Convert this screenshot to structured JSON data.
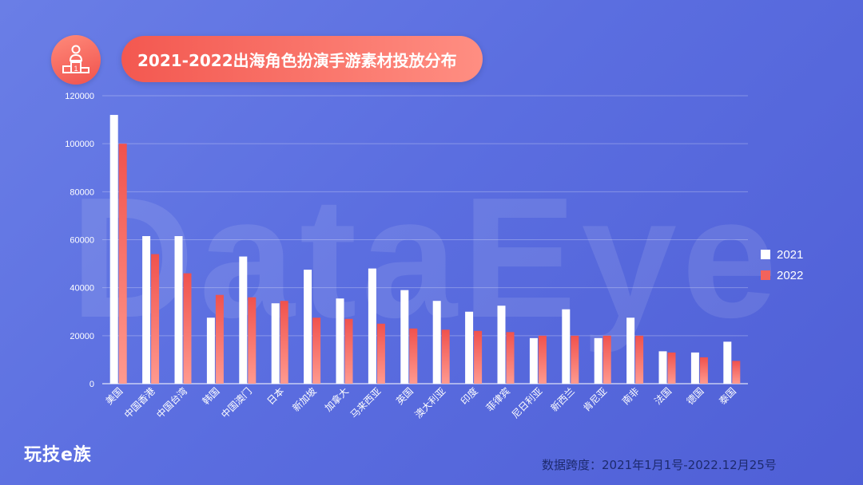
{
  "title": "2021-2022出海角色扮演手游素材投放分布",
  "watermark": "DataEye",
  "brand": "玩技e族",
  "footnote": "数据跨度：2021年1月1号-2022.12月25号",
  "colors": {
    "s2021": "#ffffff",
    "s2022": "#f2635c",
    "axis": "#ffffff",
    "grid": "rgba(255,255,255,0.28)"
  },
  "icons": {
    "logo": "podium-person-icon"
  },
  "chart_data": {
    "type": "bar",
    "categories": [
      "美国",
      "中国香港",
      "中国台湾",
      "韩国",
      "中国澳门",
      "日本",
      "新加坡",
      "加拿大",
      "马来西亚",
      "英国",
      "澳大利亚",
      "印度",
      "菲律宾",
      "尼日利亚",
      "新西兰",
      "肯尼亚",
      "南非",
      "法国",
      "德国",
      "泰国"
    ],
    "series": [
      {
        "name": "2021",
        "values": [
          112000,
          61500,
          61500,
          27500,
          53000,
          33500,
          47500,
          35500,
          48000,
          39000,
          34500,
          30000,
          32500,
          19000,
          31000,
          19000,
          27500,
          13500,
          13000,
          17500
        ]
      },
      {
        "name": "2022",
        "values": [
          100000,
          54000,
          46000,
          37000,
          36000,
          34500,
          27500,
          27000,
          25000,
          23000,
          22500,
          22000,
          21500,
          20000,
          20000,
          20000,
          20000,
          13000,
          11000,
          9500
        ]
      }
    ],
    "ylim": [
      0,
      120000
    ],
    "yticks": [
      0,
      20000,
      40000,
      60000,
      80000,
      100000,
      120000
    ],
    "grid": true,
    "legend_position": "right"
  }
}
